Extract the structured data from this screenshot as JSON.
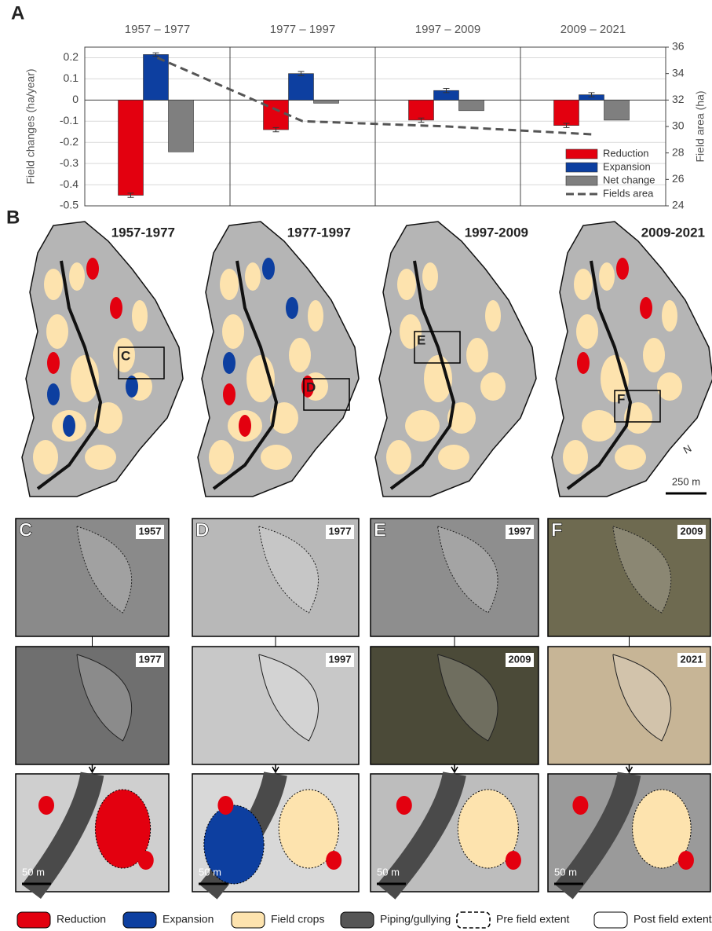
{
  "chart_data": {
    "type": "bar",
    "panel_label": "A",
    "categories": [
      "1957 – 1977",
      "1977 – 1997",
      "1997 – 2009",
      "2009 – 2021"
    ],
    "ylabel": "Field changes (ha/year)",
    "y2label": "Field area (ha)",
    "ylim": [
      -0.5,
      0.25
    ],
    "yticks": [
      -0.5,
      -0.4,
      -0.3,
      -0.2,
      -0.1,
      0,
      0.1,
      0.2
    ],
    "y2lim": [
      24,
      36
    ],
    "y2ticks": [
      24,
      26,
      28,
      30,
      32,
      34,
      36
    ],
    "grid": true,
    "legend": "lower right",
    "series": [
      {
        "name": "Reduction",
        "color": "#e3000f",
        "values": [
          -0.45,
          -0.14,
          -0.095,
          -0.12
        ],
        "errors": [
          0.01,
          0.01,
          0.01,
          0.01
        ]
      },
      {
        "name": "Expansion",
        "color": "#0d3fa0",
        "values": [
          0.215,
          0.125,
          0.045,
          0.025
        ],
        "errors": [
          0.008,
          0.01,
          0.01,
          0.01
        ]
      },
      {
        "name": "Net change",
        "color": "#7f7f7f",
        "values": [
          -0.245,
          -0.015,
          -0.05,
          -0.095
        ]
      },
      {
        "name": "Fields area",
        "type": "line",
        "axis": "y2",
        "color": "#555555",
        "values": [
          35.2,
          30.4,
          30.0,
          29.4
        ]
      }
    ]
  },
  "maps": {
    "label": "B",
    "periods": [
      "1957-1977",
      "1977-1997",
      "1997-2009",
      "2009-2021"
    ],
    "boxes": [
      "C",
      "D",
      "E",
      "F"
    ],
    "north": "N",
    "scale": "250 m"
  },
  "details": [
    {
      "label": "C",
      "years": [
        "1957",
        "1977"
      ],
      "scale": "50 m"
    },
    {
      "label": "D",
      "years": [
        "1977",
        "1997"
      ],
      "scale": "50 m"
    },
    {
      "label": "E",
      "years": [
        "1997",
        "2009"
      ],
      "scale": "50 m"
    },
    {
      "label": "F",
      "years": [
        "2009",
        "2021"
      ],
      "scale": "50 m"
    }
  ],
  "legend": [
    "Reduction",
    "Expansion",
    "Field crops",
    "Piping/gullying",
    "Pre field extent",
    "Post field extent"
  ]
}
